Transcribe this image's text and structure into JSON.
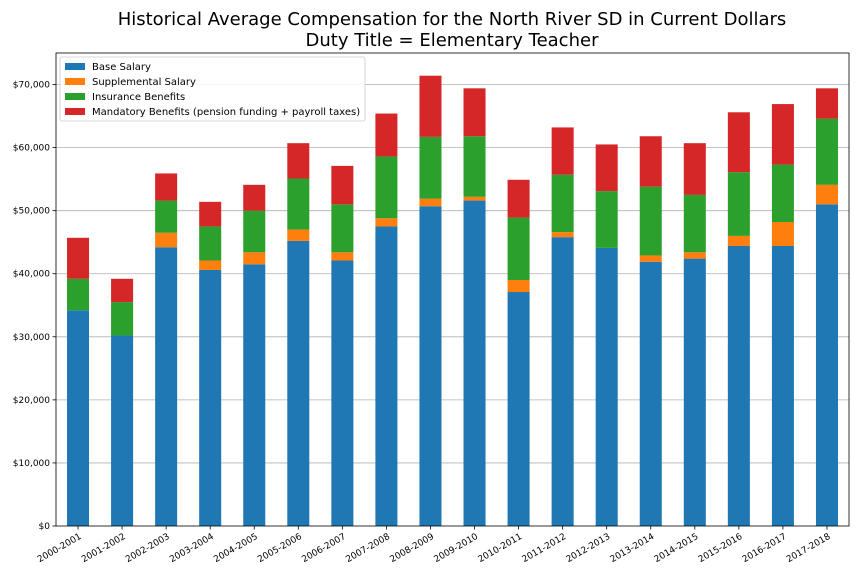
{
  "chart_data": {
    "type": "bar",
    "stacked": true,
    "title": "Historical Average Compensation for the North River SD in Current Dollars",
    "subtitle": "Duty Title = Elementary Teacher",
    "xlabel": "",
    "ylabel": "",
    "ylim": [
      0,
      75000
    ],
    "yticks": [
      "$0",
      "$10,000",
      "$20,000",
      "$30,000",
      "$40,000",
      "$50,000",
      "$60,000",
      "$70,000"
    ],
    "grid": "horizontal",
    "legend_position": "top-left",
    "categories": [
      "2000-2001",
      "2001-2002",
      "2002-2003",
      "2003-2004",
      "2004-2005",
      "2005-2006",
      "2006-2007",
      "2007-2008",
      "2008-2009",
      "2009-2010",
      "2010-2011",
      "2011-2012",
      "2012-2013",
      "2013-2014",
      "2014-2015",
      "2015-2016",
      "2016-2017",
      "2017-2018"
    ],
    "series": [
      {
        "name": "Base Salary",
        "color": "#1f77b4",
        "values": [
          34200,
          30200,
          44200,
          40600,
          41500,
          45200,
          42100,
          47500,
          50700,
          51600,
          37100,
          45800,
          44100,
          41900,
          42400,
          44400,
          44400,
          51000
        ]
      },
      {
        "name": "Supplemental Salary",
        "color": "#ff7f0e",
        "values": [
          0,
          0,
          2300,
          1500,
          1900,
          1800,
          1300,
          1300,
          1200,
          600,
          1900,
          800,
          0,
          1000,
          1000,
          1600,
          3800,
          3100
        ]
      },
      {
        "name": "Insurance Benefits",
        "color": "#2ca02c",
        "values": [
          5000,
          5300,
          5100,
          5400,
          6600,
          8100,
          7600,
          9800,
          9800,
          9600,
          9900,
          9100,
          9000,
          10900,
          9100,
          10100,
          9100,
          10500
        ]
      },
      {
        "name": "Mandatory Benefits (pension funding + payroll taxes)",
        "color": "#d62728",
        "values": [
          6500,
          3700,
          4300,
          3900,
          4100,
          5600,
          6100,
          6800,
          9700,
          7600,
          6000,
          7500,
          7400,
          8000,
          8200,
          9500,
          9600,
          4800
        ]
      }
    ]
  }
}
